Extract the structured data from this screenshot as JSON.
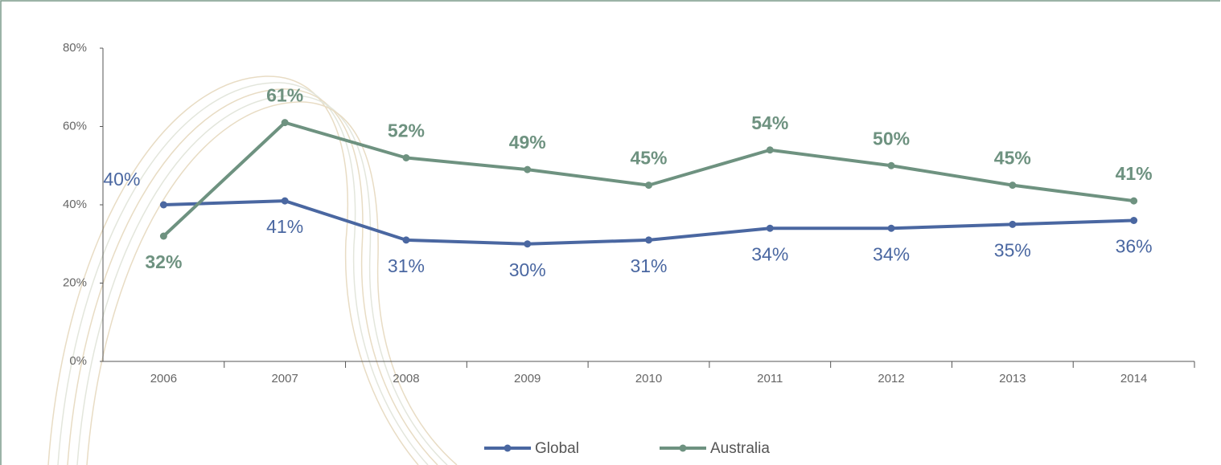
{
  "chart_data": {
    "type": "line",
    "categories": [
      "2006",
      "2007",
      "2008",
      "2009",
      "2010",
      "2011",
      "2012",
      "2013",
      "2014"
    ],
    "series": [
      {
        "name": "Global",
        "color": "#4a67a1",
        "values": [
          40,
          41,
          31,
          30,
          31,
          34,
          34,
          35,
          36
        ],
        "value_labels": [
          "40%",
          "41%",
          "31%",
          "30%",
          "31%",
          "34%",
          "34%",
          "35%",
          "36%"
        ]
      },
      {
        "name": "Australia",
        "color": "#6e9280",
        "values": [
          32,
          61,
          52,
          49,
          45,
          54,
          50,
          45,
          41
        ],
        "value_labels": [
          "32%",
          "61%",
          "52%",
          "49%",
          "45%",
          "54%",
          "50%",
          "45%",
          "41%"
        ]
      }
    ],
    "ylim": [
      0,
      80
    ],
    "yticks": [
      {
        "value": 0,
        "label": "0%"
      },
      {
        "value": 20,
        "label": "20%"
      },
      {
        "value": 40,
        "label": "40%"
      },
      {
        "value": 60,
        "label": "60%"
      },
      {
        "value": 80,
        "label": "80%"
      }
    ],
    "legend": "bottom"
  }
}
